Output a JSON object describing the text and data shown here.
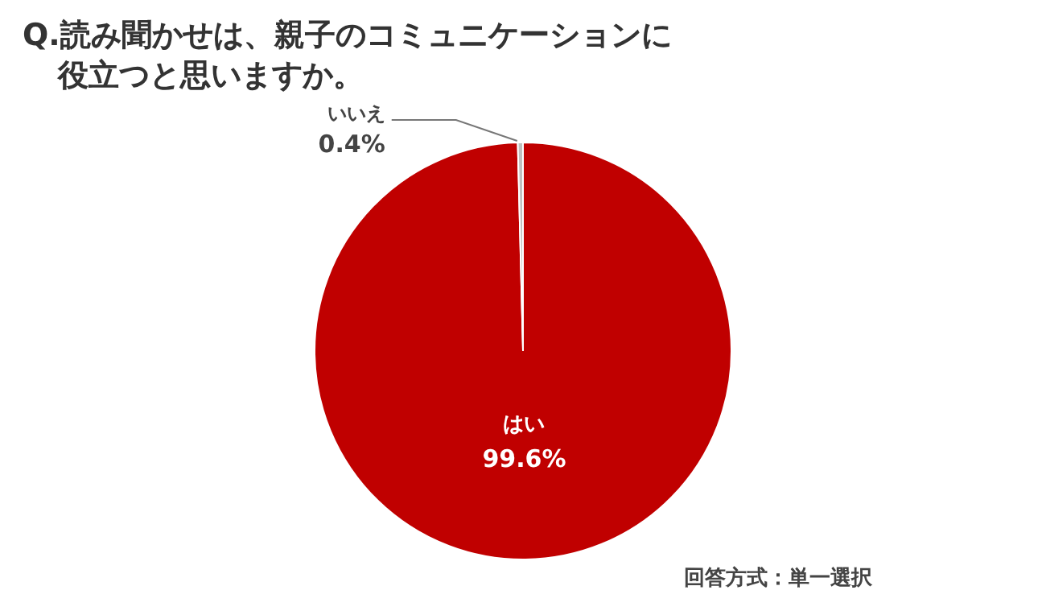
{
  "chart_data": {
    "type": "pie",
    "title": "Q.読み聞かせは、親子のコミュニケーションに役立つと思いますか。",
    "categories": [
      "はい",
      "いいえ"
    ],
    "values": [
      99.6,
      0.4
    ],
    "value_labels": [
      "99.6%",
      "0.4%"
    ],
    "colors": [
      "#c00000",
      "#bfbfbf"
    ],
    "legend": false,
    "annotations": [
      "回答方式：単一選択"
    ]
  }
}
